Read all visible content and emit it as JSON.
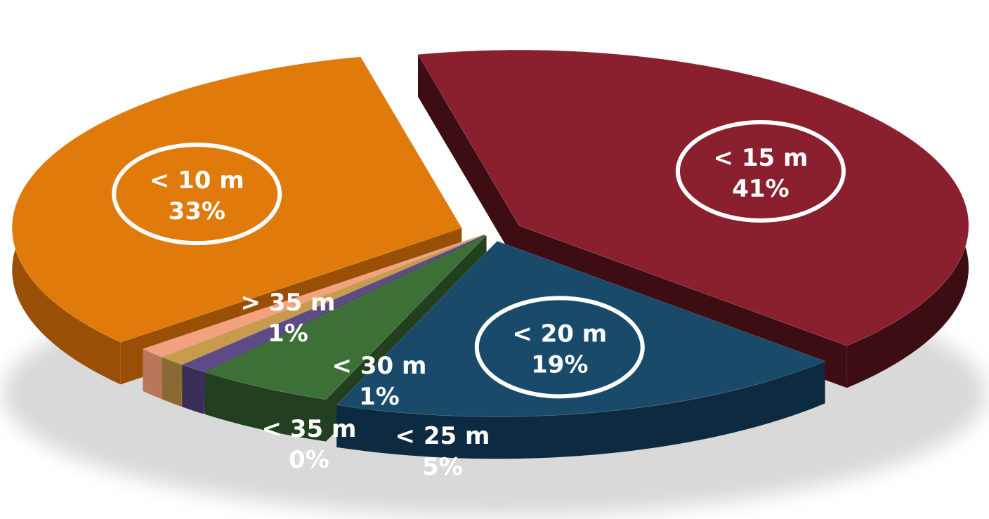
{
  "chart_data": {
    "type": "pie",
    "style": "3d-exploded",
    "slices": [
      {
        "label": "< 15 m",
        "value": 41,
        "pct_text": "41%",
        "color": "#8a1f2e",
        "dark": "#3d0d14",
        "circled": true
      },
      {
        "label": "< 20 m",
        "value": 19,
        "pct_text": "19%",
        "color": "#1a4a6a",
        "dark": "#0d2a40",
        "circled": true
      },
      {
        "label": "< 25 m",
        "value": 5,
        "pct_text": "5%",
        "color": "#3c7037",
        "dark": "#22401f",
        "circled": false
      },
      {
        "label": "< 30 m",
        "value": 1,
        "pct_text": "1%",
        "color": "#5e4b86",
        "dark": "#3a2d56",
        "circled": false
      },
      {
        "label": "< 35 m",
        "value": 0,
        "pct_text": "0%",
        "color": "#c89a4c",
        "dark": "#8a6a34",
        "circled": false
      },
      {
        "label": "> 35 m",
        "value": 1,
        "pct_text": "1%",
        "color": "#f2a27c",
        "dark": "#b8765a",
        "circled": false
      },
      {
        "label": "< 10 m",
        "value": 33,
        "pct_text": "33%",
        "color": "#e07a0a",
        "dark": "#9a4f06",
        "circled": true
      }
    ]
  }
}
